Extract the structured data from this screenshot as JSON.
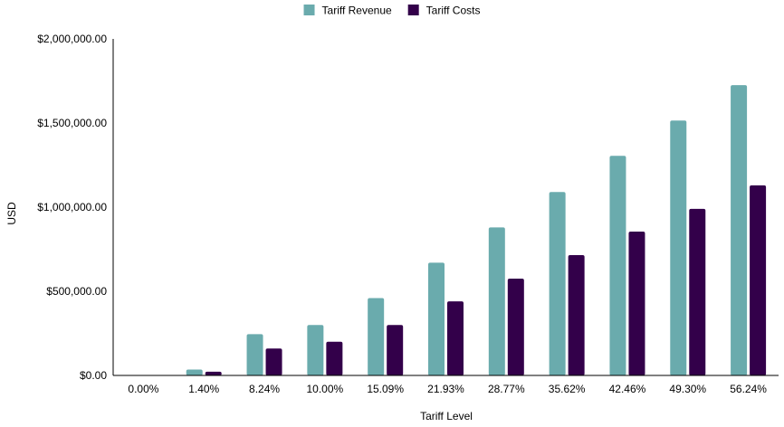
{
  "chart_data": {
    "type": "bar",
    "categories": [
      "0.00%",
      "1.40%",
      "8.24%",
      "10.00%",
      "15.09%",
      "21.93%",
      "28.77%",
      "35.62%",
      "42.46%",
      "49.30%",
      "56.24%"
    ],
    "series": [
      {
        "name": "Tariff Revenue",
        "color": "#6aabad",
        "values": [
          0,
          35000,
          245000,
          300000,
          460000,
          670000,
          880000,
          1090000,
          1305000,
          1515000,
          1725000
        ]
      },
      {
        "name": "Tariff Costs",
        "color": "#33004a",
        "values": [
          0,
          22000,
          160000,
          200000,
          300000,
          440000,
          575000,
          715000,
          855000,
          990000,
          1130000
        ]
      }
    ],
    "title": "",
    "xlabel": "Tariff Level",
    "ylabel": "USD",
    "ylim": [
      0,
      2000000
    ],
    "yticks": [
      0,
      500000,
      1000000,
      1500000,
      2000000
    ],
    "ytick_labels": [
      "$0.00",
      "$500,000.00",
      "$1,000,000.00",
      "$1,500,000.00",
      "$2,000,000.00"
    ],
    "legend_position": "top-center",
    "grid": false
  }
}
